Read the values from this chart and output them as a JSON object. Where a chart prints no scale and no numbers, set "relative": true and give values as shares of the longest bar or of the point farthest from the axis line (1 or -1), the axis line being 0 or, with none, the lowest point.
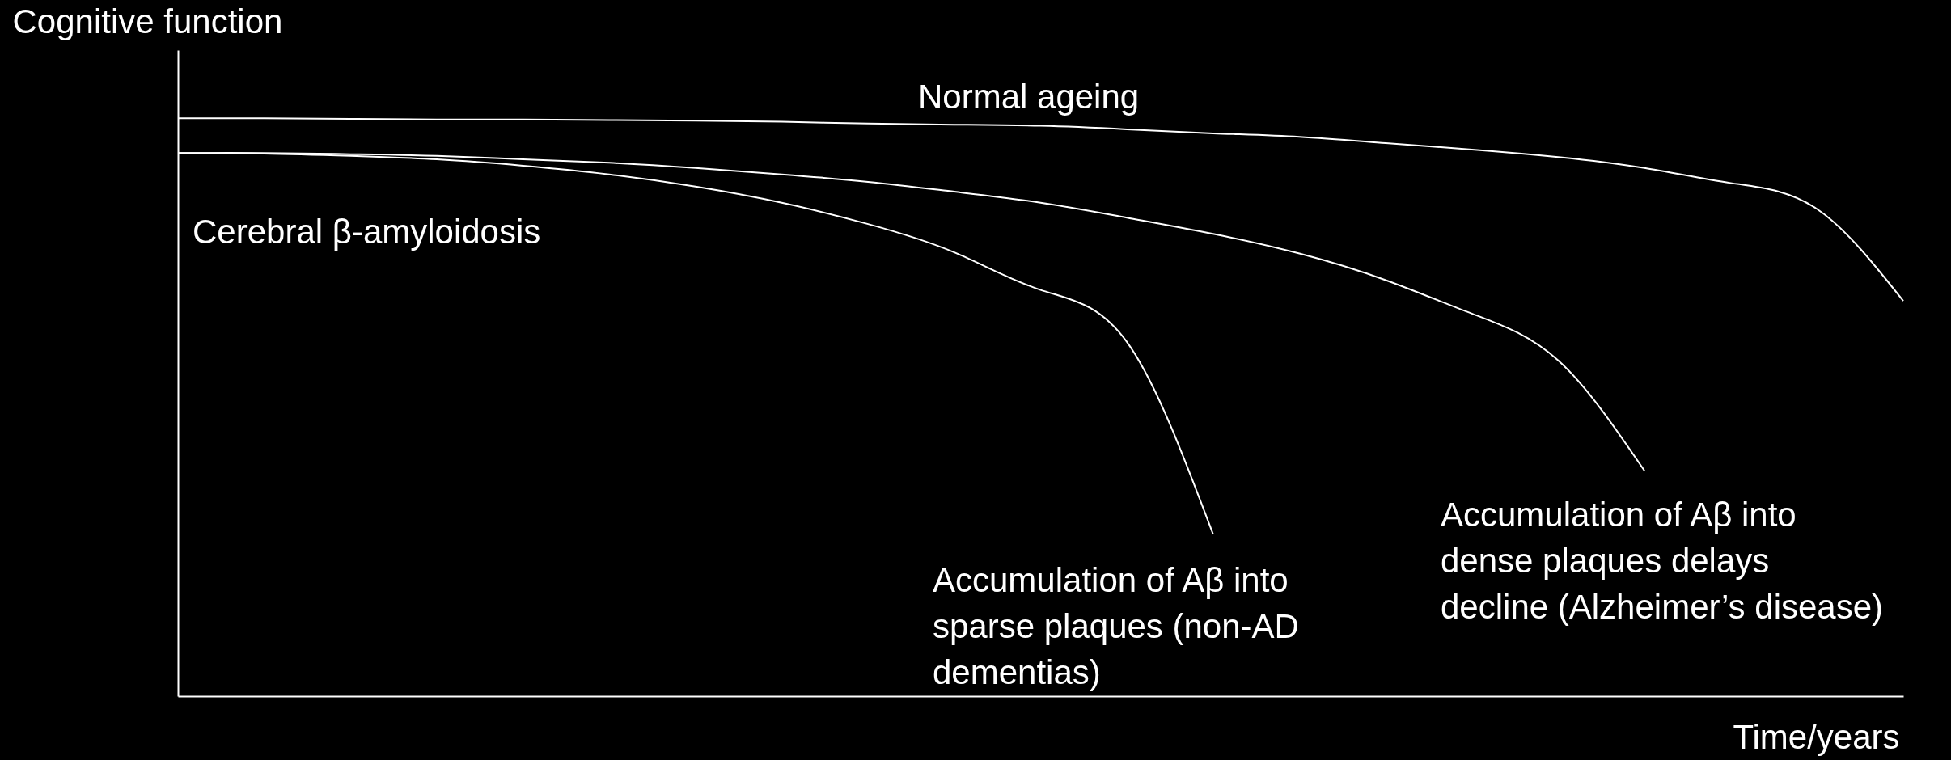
{
  "chart_data": {
    "type": "line",
    "relative": true,
    "xlabel": "Time/years",
    "ylabel": "Cognitive function",
    "annotations": [
      "Cerebral β-amyloidosis"
    ],
    "categories": [
      null,
      null,
      null,
      null,
      null,
      null,
      null,
      null,
      null,
      null,
      null,
      null,
      null,
      null,
      null,
      null,
      null,
      null,
      null,
      null,
      null
    ],
    "series": [
      {
        "name": "Normal ageing",
        "color": "#ffffff",
        "values": [
          1.0,
          1.0,
          0.999,
          0.998,
          0.998,
          0.997,
          0.996,
          0.994,
          0.991,
          0.989,
          0.987,
          0.981,
          0.974,
          0.968,
          0.957,
          0.946,
          0.933,
          0.914,
          0.888,
          0.843,
          0.684
        ]
      },
      {
        "name": "Accumulation of Aβ into sparse plaques (non-AD dementias)",
        "color": "#ffffff",
        "values": [
          0.94,
          0.939,
          0.935,
          0.929,
          0.918,
          0.903,
          0.882,
          0.854,
          0.817,
          0.768,
          0.703,
          0.613,
          0.28,
          null,
          null,
          null,
          null,
          null,
          null,
          null,
          null
        ]
      },
      {
        "name": "Accumulation of Aβ into dense plaques delays decline (Alzheimer’s disease)",
        "color": "#ffffff",
        "values": [
          0.94,
          0.94,
          0.938,
          0.935,
          0.929,
          0.923,
          0.914,
          0.903,
          0.89,
          0.873,
          0.854,
          0.828,
          0.8,
          0.766,
          0.72,
          0.662,
          0.581,
          0.39,
          null,
          null,
          null
        ]
      }
    ]
  }
}
